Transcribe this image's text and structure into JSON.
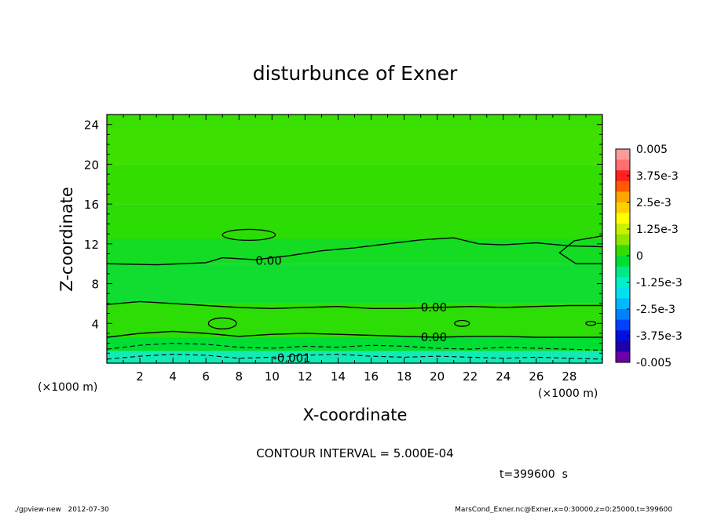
{
  "chart_data": {
    "type": "heatmap",
    "title": "disturbunce of Exner",
    "xlabel": "X-coordinate",
    "ylabel": "Z-coordinate",
    "x_unit": "(×1000 m)",
    "y_unit": "(×1000 m)",
    "xlim": [
      0,
      30
    ],
    "ylim": [
      0,
      25
    ],
    "x_ticks": [
      2,
      4,
      6,
      8,
      10,
      12,
      14,
      16,
      18,
      20,
      22,
      24,
      26,
      28
    ],
    "y_ticks": [
      4,
      8,
      12,
      16,
      20,
      24
    ],
    "colorbar": {
      "min": -0.005,
      "max": 0.005,
      "labels": [
        "0.005",
        "3.75e-3",
        "2.5e-3",
        "1.25e-3",
        "0",
        "-1.25e-3",
        "-2.5e-3",
        "-3.75e-3",
        "-0.005"
      ],
      "colors": [
        "#ff9a9a",
        "#ff7070",
        "#ff2020",
        "#ff5a00",
        "#ffa500",
        "#ffd000",
        "#ffff00",
        "#c8f000",
        "#8ee600",
        "#33dd00",
        "#00dd33",
        "#00e88a",
        "#00f0c8",
        "#00e0f0",
        "#00b8ff",
        "#0080ff",
        "#0040ff",
        "#0010e0",
        "#2000a8",
        "#6a00a8"
      ]
    },
    "bands": [
      {
        "z0": 23.5,
        "z1": 25.0,
        "value": 0.00045,
        "color": "#39df00"
      },
      {
        "z0": 20.0,
        "z1": 23.5,
        "value": 0.00035,
        "color": "#3ee000"
      },
      {
        "z0": 16.0,
        "z1": 20.0,
        "value": 0.0003,
        "color": "#33dd00"
      },
      {
        "z0": 12.5,
        "z1": 16.0,
        "value": 0.0002,
        "color": "#2cdc05"
      },
      {
        "z0": 10.0,
        "z1": 12.5,
        "value": -0.0001,
        "color": "#14dc22"
      },
      {
        "z0": 6.0,
        "z1": 10.0,
        "value": -0.00015,
        "color": "#10dd30"
      },
      {
        "z0": 2.6,
        "z1": 6.0,
        "value": 0.0001,
        "color": "#2ddd06"
      },
      {
        "z0": 1.2,
        "z1": 2.6,
        "value": -0.0005,
        "color": "#00dd33"
      },
      {
        "z0": 0.0,
        "z1": 1.2,
        "value": -0.0011,
        "color": "#12ecb4"
      }
    ],
    "contours": [
      {
        "level": 0.0,
        "label": "0.00",
        "label_x": 9.8,
        "label_z": 10.3,
        "x": [
          0,
          3,
          6,
          7,
          9,
          11,
          13,
          15,
          17,
          19,
          21,
          22.5,
          24,
          26,
          28,
          30
        ],
        "z": [
          10.0,
          9.9,
          10.1,
          10.6,
          10.4,
          10.8,
          11.3,
          11.6,
          12.0,
          12.4,
          12.6,
          12.0,
          11.9,
          12.1,
          11.8,
          11.7
        ]
      },
      {
        "level": 0.0,
        "label": "0.00",
        "label_x": 19.8,
        "label_z": 5.6,
        "x": [
          0,
          2,
          4,
          6,
          8,
          10,
          12,
          14,
          16,
          18,
          20,
          22,
          24,
          26,
          28,
          30
        ],
        "z": [
          5.9,
          6.2,
          6.0,
          5.8,
          5.6,
          5.5,
          5.6,
          5.7,
          5.5,
          5.5,
          5.6,
          5.7,
          5.6,
          5.7,
          5.8,
          5.8
        ]
      },
      {
        "level": 0.0,
        "label": "0.00",
        "label_x": 19.8,
        "label_z": 2.6,
        "x": [
          0,
          2,
          4,
          6,
          8,
          10,
          12,
          14,
          16,
          18,
          20,
          22,
          24,
          26,
          28,
          30
        ],
        "z": [
          2.6,
          3.0,
          3.2,
          3.0,
          2.7,
          2.9,
          3.0,
          2.9,
          2.8,
          2.7,
          2.6,
          2.7,
          2.7,
          2.6,
          2.6,
          2.6
        ]
      },
      {
        "level": -0.0005,
        "label": "",
        "label_x": 0,
        "label_z": 0,
        "dashed": true,
        "x": [
          0,
          2,
          4,
          6,
          8,
          10,
          12,
          14,
          16,
          18,
          20,
          22,
          24,
          26,
          28,
          30
        ],
        "z": [
          1.4,
          1.8,
          2.0,
          1.9,
          1.6,
          1.5,
          1.7,
          1.6,
          1.8,
          1.7,
          1.5,
          1.4,
          1.6,
          1.5,
          1.4,
          1.3
        ]
      },
      {
        "level": -0.001,
        "label": "-0.001",
        "label_x": 11.2,
        "label_z": 0.5,
        "dashed": true,
        "x": [
          0,
          2,
          4,
          6,
          8,
          10,
          12,
          14,
          16,
          18,
          20,
          22,
          24,
          26,
          28,
          30
        ],
        "z": [
          0.4,
          0.7,
          0.9,
          0.8,
          0.5,
          0.6,
          0.8,
          0.9,
          0.7,
          0.6,
          0.7,
          0.6,
          0.5,
          0.6,
          0.5,
          0.4
        ]
      }
    ],
    "closed_contours": [
      {
        "cx": 8.6,
        "cz": 12.9,
        "rx": 1.6,
        "rz": 0.55
      },
      {
        "cx": 7.0,
        "cz": 4.0,
        "rx": 0.85,
        "rz": 0.55
      },
      {
        "cx": 21.5,
        "cz": 4.0,
        "rx": 0.45,
        "rz": 0.3
      },
      {
        "cx": 29.3,
        "cz": 4.0,
        "rx": 0.3,
        "rz": 0.2
      }
    ],
    "notch": {
      "x": [
        30,
        28.3,
        27.4,
        28.4,
        30
      ],
      "z": [
        12.8,
        12.3,
        11.1,
        10.0,
        10.0
      ]
    },
    "annotation": "CONTOUR INTERVAL = 5.000E-04",
    "time_label": "t=399600  s"
  },
  "footer": {
    "left": "./gpview-new   2012-07-30",
    "right": "MarsCond_Exner.nc@Exner,x=0:30000,z=0:25000,t=399600"
  }
}
